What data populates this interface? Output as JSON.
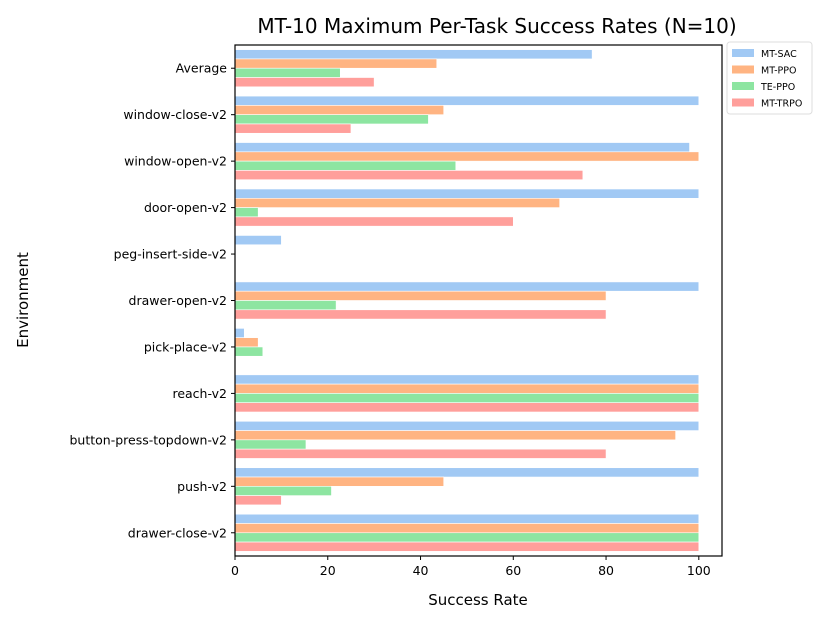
{
  "chart_data": {
    "type": "bar",
    "orientation": "horizontal",
    "title": "MT-10 Maximum Per-Task Success Rates (N=10)",
    "xlabel": "Success Rate",
    "ylabel": "Environment",
    "xlim": [
      0,
      105
    ],
    "xticks": [
      0,
      20,
      40,
      60,
      80,
      100
    ],
    "grid": false,
    "legend_position": "outside-top-right",
    "categories": [
      "Average",
      "window-close-v2",
      "window-open-v2",
      "door-open-v2",
      "peg-insert-side-v2",
      "drawer-open-v2",
      "pick-place-v2",
      "reach-v2",
      "button-press-topdown-v2",
      "push-v2",
      "drawer-close-v2"
    ],
    "series": [
      {
        "name": "MT-SAC",
        "color": "#a1c9f4",
        "values": [
          77,
          100,
          98,
          100,
          10,
          100,
          2,
          100,
          100,
          100,
          100
        ]
      },
      {
        "name": "MT-PPO",
        "color": "#ffb482",
        "values": [
          43.5,
          45,
          100,
          70,
          0,
          80,
          5,
          100,
          95,
          45,
          100
        ]
      },
      {
        "name": "TE-PPO",
        "color": "#8de5a1",
        "values": [
          22.7,
          41.7,
          47.6,
          5,
          0,
          21.8,
          6,
          100,
          15.3,
          20.8,
          100
        ]
      },
      {
        "name": "MT-TRPO",
        "color": "#ff9f9b",
        "values": [
          30,
          25,
          75,
          60,
          0,
          80,
          0,
          100,
          80,
          10,
          100
        ]
      }
    ]
  }
}
